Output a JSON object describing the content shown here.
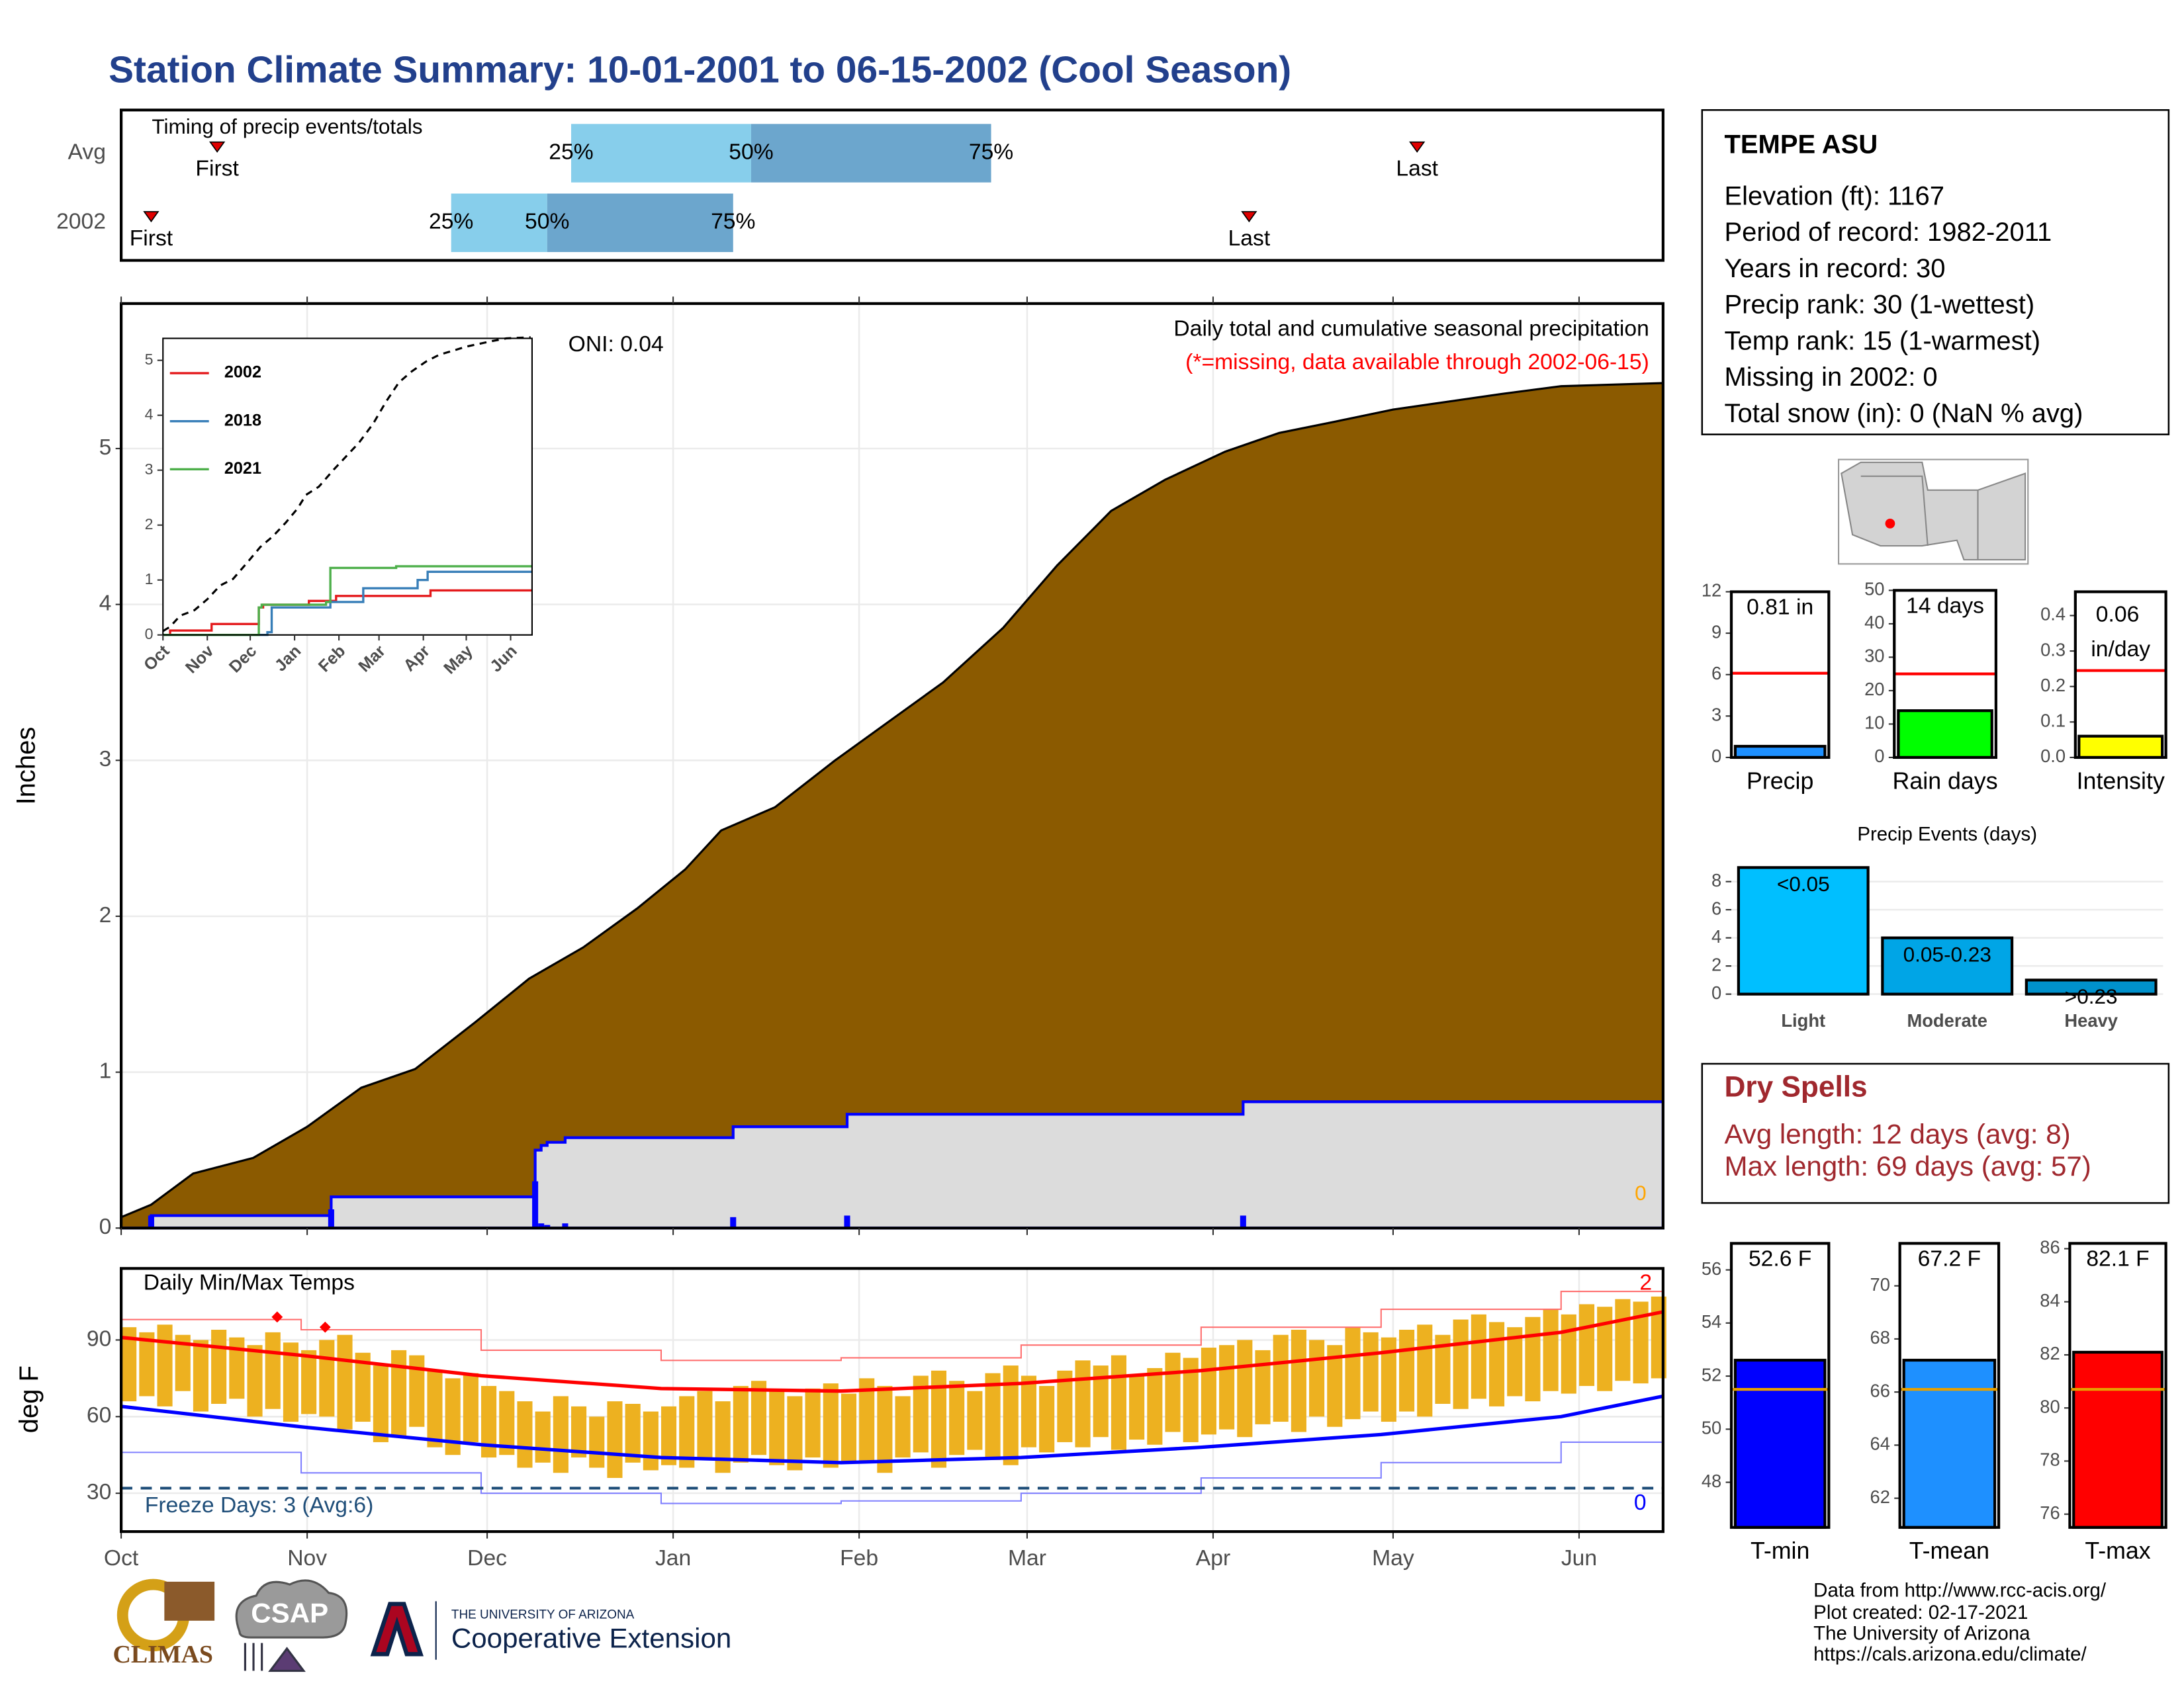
{
  "title": "Station Climate Summary: 10-01-2001 to 06-15-2002 (Cool Season)",
  "station": {
    "name": "TEMPE ASU",
    "details": [
      "Elevation (ft): 1167",
      "Period of record: 1982-2011",
      "Years in record: 30",
      "Precip rank: 30 (1-wettest)",
      "Temp rank: 15 (1-warmest)",
      "Missing in 2002: 0",
      "Total snow (in): 0 (NaN % avg)"
    ]
  },
  "dry_spells": {
    "title": "Dry Spells",
    "lines": [
      "Avg length: 12 days (avg: 8)",
      "Max length: 69 days (avg: 57)"
    ]
  },
  "source_notes": [
    "Data from http://www.rcc-acis.org/",
    "Plot created: 02-17-2021",
    "The University of Arizona",
    "https://cals.arizona.edu/climate/"
  ],
  "logos": {
    "climas": "CLIMAS",
    "csap": "CSAP",
    "university": "THE UNIVERSITY OF ARIZONA",
    "unit": "Cooperative Extension"
  },
  "chart_data": [
    {
      "type": "timing",
      "title": "Timing of precip events/totals",
      "categories": [
        "Avg",
        "2002"
      ],
      "xlim": [
        0,
        257
      ],
      "percentile_labels": [
        "25%",
        "50%",
        "75%"
      ],
      "first_label": "First",
      "last_label": "Last",
      "colors": [
        "#87CEEB",
        "#6CA6CD"
      ],
      "marker_color": "#E00000",
      "events": [
        {
          "first": 16,
          "p25": 75,
          "p50": 105,
          "p75": 145,
          "last": 216
        },
        {
          "first": 5,
          "p25": 55,
          "p50": 71,
          "p75": 102,
          "last": 188
        }
      ]
    },
    {
      "type": "area",
      "subtitle": "Daily total and cumulative seasonal precipitation",
      "note": "(*=missing, data available through 2002-06-15)",
      "oni_label": "ONI: 0.04",
      "missing_count": 0,
      "ylabel": "Inches",
      "xlim": [
        0,
        257
      ],
      "ylim": [
        0,
        5.93
      ],
      "xticks": [
        0,
        31,
        61,
        92,
        123,
        151,
        182,
        212,
        243
      ],
      "yticks": [
        0,
        1,
        2,
        3,
        4,
        5
      ],
      "grid": true,
      "average": {
        "color": "#8B5A00",
        "x": [
          0,
          5,
          12,
          22,
          31,
          40,
          49,
          59,
          68,
          77,
          86,
          94,
          100,
          109,
          119,
          128,
          137,
          147,
          156,
          165,
          174,
          184,
          193,
          202,
          212,
          221,
          230,
          240,
          257
        ],
        "values": [
          0.07,
          0.15,
          0.35,
          0.45,
          0.65,
          0.9,
          1.02,
          1.32,
          1.6,
          1.8,
          2.05,
          2.3,
          2.55,
          2.7,
          3.0,
          3.25,
          3.5,
          3.85,
          4.25,
          4.6,
          4.8,
          4.98,
          5.1,
          5.17,
          5.25,
          5.3,
          5.35,
          5.4,
          5.42
        ]
      },
      "season": {
        "color": "#0000FF",
        "fill": "#DCDCDC",
        "x": [
          0,
          5,
          35,
          69,
          70,
          71,
          74,
          102,
          121,
          187,
          257
        ],
        "values": [
          0,
          0.08,
          0.2,
          0.5,
          0.53,
          0.55,
          0.58,
          0.65,
          0.73,
          0.81,
          0.81
        ]
      },
      "daily": {
        "color": "#0000FF",
        "x": [
          5,
          35,
          69,
          70,
          71,
          74,
          102,
          121,
          187
        ],
        "values": [
          0.08,
          0.12,
          0.3,
          0.03,
          0.02,
          0.03,
          0.07,
          0.08,
          0.08
        ]
      }
    },
    {
      "type": "line",
      "xlim": [
        0,
        258
      ],
      "ylim": [
        0,
        5.4
      ],
      "xticks": [
        {
          "value": 0,
          "label": "Oct"
        },
        {
          "value": 31,
          "label": "Nov"
        },
        {
          "value": 61,
          "label": "Dec"
        },
        {
          "value": 92,
          "label": "Jan"
        },
        {
          "value": 123,
          "label": "Feb"
        },
        {
          "value": 151,
          "label": "Mar"
        },
        {
          "value": 182,
          "label": "Apr"
        },
        {
          "value": 212,
          "label": "May"
        },
        {
          "value": 243,
          "label": "Jun"
        }
      ],
      "yticks": [
        0,
        1,
        2,
        3,
        4,
        5
      ],
      "series": [
        {
          "name": "2002",
          "color": "#E41A1C",
          "x": [
            0,
            5,
            34,
            67,
            70,
            102,
            121,
            187,
            258
          ],
          "values": [
            0,
            0.08,
            0.2,
            0.5,
            0.55,
            0.62,
            0.71,
            0.81,
            0.81
          ]
        },
        {
          "name": "2018",
          "color": "#377EB8",
          "x": [
            0,
            73,
            76,
            117,
            140,
            178,
            185,
            258
          ],
          "values": [
            0,
            0.05,
            0.5,
            0.6,
            0.85,
            1.0,
            1.15,
            1.15
          ]
        },
        {
          "name": "2021",
          "color": "#4DAF4A",
          "x": [
            0,
            67,
            69,
            114,
            117,
            163,
            258
          ],
          "values": [
            0,
            0.5,
            0.55,
            0.6,
            1.22,
            1.25,
            1.25
          ]
        }
      ]
    },
    {
      "type": "temperature",
      "title": "Daily Min/Max Temps",
      "freeze_label": "Freeze Days: 3 (Avg:6)",
      "record_high_count": 2,
      "record_low_count": 0,
      "ylabel": "deg F",
      "xlim": [
        0,
        257
      ],
      "ylim": [
        15,
        118
      ],
      "yticks": [
        30,
        60,
        90
      ],
      "freeze_line": 32,
      "bar_color": "#EDB120",
      "xticks": [
        {
          "value": 0,
          "label": "Oct"
        },
        {
          "value": 31,
          "label": "Nov"
        },
        {
          "value": 61,
          "label": "Dec"
        },
        {
          "value": 92,
          "label": "Jan"
        },
        {
          "value": 123,
          "label": "Feb"
        },
        {
          "value": 151,
          "label": "Mar"
        },
        {
          "value": 182,
          "label": "Apr"
        },
        {
          "value": 212,
          "label": "May"
        },
        {
          "value": 243,
          "label": "Jun"
        }
      ],
      "x": [
        0,
        3,
        6,
        9,
        12,
        15,
        18,
        21,
        24,
        27,
        30,
        33,
        36,
        39,
        42,
        45,
        48,
        51,
        54,
        57,
        60,
        63,
        66,
        69,
        72,
        75,
        78,
        81,
        84,
        87,
        90,
        93,
        96,
        99,
        102,
        105,
        108,
        111,
        114,
        117,
        120,
        123,
        126,
        129,
        132,
        135,
        138,
        141,
        144,
        147,
        150,
        153,
        156,
        159,
        162,
        165,
        168,
        171,
        174,
        177,
        180,
        183,
        186,
        189,
        192,
        195,
        198,
        201,
        204,
        207,
        210,
        213,
        216,
        219,
        222,
        225,
        228,
        231,
        234,
        237,
        240,
        243,
        246,
        249,
        252,
        255
      ],
      "max": [
        95,
        93,
        96,
        92,
        90,
        94,
        91,
        88,
        93,
        89,
        86,
        90,
        92,
        85,
        80,
        86,
        84,
        78,
        75,
        77,
        72,
        70,
        66,
        62,
        68,
        64,
        60,
        66,
        65,
        62,
        64,
        68,
        70,
        66,
        72,
        74,
        70,
        68,
        71,
        73,
        69,
        75,
        72,
        68,
        76,
        78,
        74,
        70,
        77,
        80,
        76,
        72,
        78,
        82,
        80,
        84,
        76,
        79,
        85,
        83,
        87,
        88,
        90,
        86,
        92,
        94,
        90,
        88,
        95,
        93,
        91,
        94,
        96,
        92,
        98,
        100,
        97,
        95,
        99,
        102,
        100,
        104,
        103,
        106,
        105,
        107
      ],
      "min": [
        66,
        68,
        64,
        70,
        62,
        65,
        67,
        60,
        63,
        58,
        61,
        60,
        55,
        58,
        50,
        52,
        56,
        48,
        45,
        50,
        44,
        45,
        40,
        42,
        38,
        44,
        40,
        36,
        42,
        39,
        41,
        40,
        43,
        38,
        42,
        45,
        41,
        39,
        44,
        40,
        42,
        42,
        38,
        44,
        46,
        40,
        45,
        47,
        43,
        41,
        48,
        46,
        50,
        48,
        52,
        47,
        51,
        49,
        54,
        50,
        53,
        55,
        52,
        57,
        58,
        54,
        60,
        56,
        59,
        62,
        58,
        62,
        60,
        65,
        63,
        67,
        64,
        68,
        66,
        70,
        69,
        72,
        70,
        74,
        73,
        75
      ],
      "normal_max": {
        "color": "#FF0000",
        "x": [
          0,
          30,
          60,
          90,
          120,
          150,
          180,
          210,
          240,
          257
        ],
        "values": [
          91,
          84,
          76,
          71,
          70,
          73,
          78,
          85,
          93,
          101
        ]
      },
      "normal_min": {
        "color": "#0000FF",
        "x": [
          0,
          30,
          60,
          90,
          120,
          150,
          180,
          210,
          240,
          257
        ],
        "values": [
          64,
          56,
          49,
          44,
          42,
          44,
          48,
          53,
          60,
          68
        ]
      },
      "record_max": {
        "color": "#FF7070",
        "x": [
          0,
          30,
          60,
          90,
          120,
          150,
          180,
          210,
          240,
          257
        ],
        "values": [
          98,
          94,
          86,
          82,
          83,
          88,
          95,
          102,
          109,
          114
        ]
      },
      "record_min": {
        "color": "#8080FF",
        "x": [
          0,
          30,
          60,
          90,
          120,
          150,
          180,
          210,
          240,
          257
        ],
        "values": [
          46,
          38,
          30,
          26,
          27,
          30,
          36,
          42,
          50,
          57
        ]
      },
      "record_events": {
        "color": "#FF0000",
        "x": [
          26,
          34
        ],
        "values": [
          99,
          95
        ]
      }
    },
    {
      "type": "bar",
      "categories": [
        "Precip"
      ],
      "values": [
        0.81
      ],
      "value_labels": [
        "0.81 in"
      ],
      "average": 6.1,
      "average_color": "#FF0000",
      "color": "#1E90FF",
      "ylim": [
        0,
        12
      ],
      "yticks": [
        0,
        3,
        6,
        9,
        12
      ]
    },
    {
      "type": "bar",
      "categories": [
        "Rain days"
      ],
      "values": [
        14
      ],
      "value_labels": [
        "14 days"
      ],
      "average": 25,
      "average_color": "#FF0000",
      "color": "#00FF00",
      "ylim": [
        0,
        50
      ],
      "yticks": [
        0,
        10,
        20,
        30,
        40,
        50
      ]
    },
    {
      "type": "bar",
      "categories": [
        "Intensity"
      ],
      "values": [
        0.06
      ],
      "value_labels": [
        "0.06 in/day"
      ],
      "average": 0.245,
      "average_color": "#FF0000",
      "color": "#FFFF00",
      "ylim": [
        0,
        0.467
      ],
      "yticks": [
        {
          "value": 0,
          "label": "0.0"
        },
        0.1,
        0.2,
        0.3,
        0.4
      ]
    },
    {
      "type": "bar",
      "title": "Precip Events (days)",
      "categories": [
        "Light",
        "Moderate",
        "Heavy"
      ],
      "values": [
        9,
        4,
        1
      ],
      "bin_labels": [
        "<0.05",
        "0.05-0.23",
        ">0.23"
      ],
      "colors": [
        "#00BFFF",
        "#00A5E6",
        "#0091CC"
      ],
      "ylim": [
        -0.2,
        9.6
      ],
      "yticks": [
        0,
        2,
        4,
        6,
        8
      ],
      "grid": true
    },
    {
      "type": "bar",
      "categories": [
        "T-min"
      ],
      "values": [
        52.6
      ],
      "value_labels": [
        "52.6 F"
      ],
      "average": 51.5,
      "average_color": "#E69F00",
      "color": "#0000FF",
      "ylim": [
        46.3,
        57.0
      ],
      "yticks": [
        48,
        50,
        52,
        54,
        56
      ]
    },
    {
      "type": "bar",
      "categories": [
        "T-mean"
      ],
      "values": [
        67.2
      ],
      "value_labels": [
        "67.2 F"
      ],
      "average": 66.1,
      "average_color": "#E69F00",
      "color": "#1E90FF",
      "ylim": [
        60.9,
        71.6
      ],
      "yticks": [
        62,
        64,
        66,
        68,
        70
      ]
    },
    {
      "type": "bar",
      "categories": [
        "T-max"
      ],
      "values": [
        82.1
      ],
      "value_labels": [
        "82.1 F"
      ],
      "average": 80.7,
      "average_color": "#E69F00",
      "color": "#FF0000",
      "ylim": [
        75.5,
        86.2
      ],
      "yticks": [
        76,
        78,
        80,
        82,
        84,
        86
      ]
    }
  ]
}
